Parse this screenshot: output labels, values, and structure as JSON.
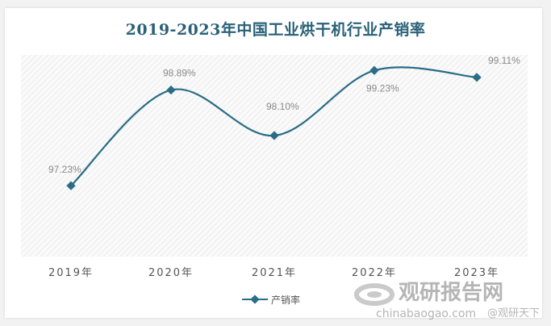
{
  "chart_data": {
    "type": "line",
    "title": "2019-2023年中国工业烘干机行业产销率",
    "categories": [
      "2019年",
      "2020年",
      "2021年",
      "2022年",
      "2023年"
    ],
    "series": [
      {
        "name": "产销率",
        "values": [
          97.23,
          98.89,
          98.1,
          99.23,
          99.11
        ],
        "labels": [
          "97.23%",
          "98.89%",
          "98.10%",
          "99.23%",
          "99.11%"
        ]
      }
    ],
    "ylim": [
      96.0,
      99.5
    ],
    "smooth": true,
    "grid": false,
    "legend": "bottom",
    "xlabel": "",
    "ylabel": "",
    "colors": {
      "line": "#2a6d86",
      "title": "#2a6179",
      "plot_background": "hatched-gray"
    }
  },
  "watermark": {
    "brand": "观研报告网",
    "url": "chinabaogao.com",
    "handle": "@观研天下"
  }
}
